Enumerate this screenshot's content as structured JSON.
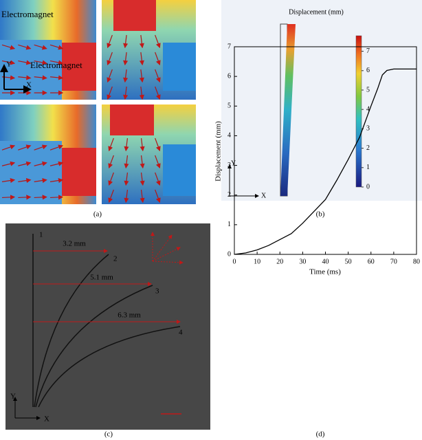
{
  "panels": {
    "a": {
      "caption": "(a)",
      "labels": [
        "Electromagnet",
        "Electromagnet"
      ],
      "axis_y": "Y",
      "axis_x": "X"
    },
    "b": {
      "caption": "(b)",
      "title": "Displacement (mm)",
      "clim": [
        0,
        7.8
      ],
      "colorbar_ticks": [
        0,
        1,
        2,
        3,
        4,
        5,
        6,
        7
      ],
      "axis_y": "Y",
      "axis_x": "X"
    },
    "c": {
      "caption": "(c)",
      "distances": [
        "3.2 mm",
        "5.1 mm",
        "6.3 mm"
      ],
      "curve_labels": [
        "1",
        "2",
        "3",
        "4"
      ],
      "axis_y": "Y",
      "axis_x": "X"
    }
  },
  "chart_data": {
    "type": "line",
    "caption": "(d)",
    "x_label": "Time (ms)",
    "y_label": "Displacement (mm)",
    "x": [
      0,
      5,
      10,
      15,
      20,
      25,
      30,
      35,
      40,
      45,
      50,
      55,
      60,
      63,
      65,
      67,
      70,
      80
    ],
    "values": [
      0,
      0.05,
      0.15,
      0.3,
      0.5,
      0.7,
      1.05,
      1.45,
      1.85,
      2.5,
      3.2,
      3.95,
      5.0,
      5.6,
      6.05,
      6.2,
      6.25,
      6.25
    ],
    "color": "#000000",
    "xlim": [
      0,
      80
    ],
    "ylim": [
      0,
      7
    ],
    "xticks": [
      0,
      10,
      20,
      30,
      40,
      50,
      60,
      70,
      80
    ],
    "yticks": [
      0,
      1,
      2,
      3,
      4,
      5,
      6,
      7
    ]
  }
}
